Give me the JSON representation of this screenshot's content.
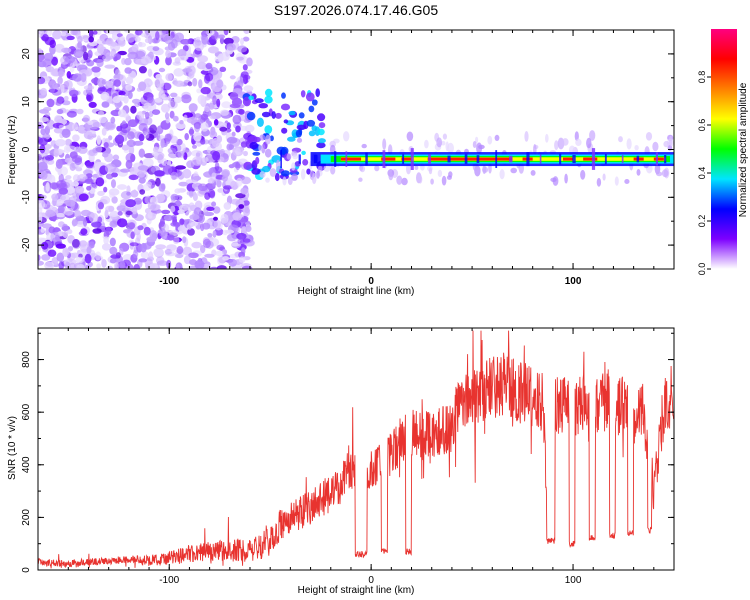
{
  "title": "S197.2026.074.17.46.G05",
  "chart_data": [
    {
      "type": "heatmap",
      "name": "spectrogram",
      "xlabel": "Height of straight line (km)",
      "ylabel": "Frequency (Hz)",
      "xlim": [
        -165,
        150
      ],
      "ylim": [
        -25,
        25
      ],
      "xticks": [
        -100,
        0,
        100
      ],
      "xtick_labels": [
        "-100",
        "0",
        "100"
      ],
      "yticks": [
        20,
        10,
        0,
        -10,
        -20
      ],
      "ytick_labels": [
        "20",
        "10",
        "0",
        "-10",
        "-20"
      ],
      "description_regions": [
        {
          "x_range": [
            -165,
            -60
          ],
          "kind": "broadband noise"
        },
        {
          "x_range": [
            -60,
            150
          ],
          "kind": "narrow carrier line near -2 Hz"
        }
      ],
      "colorbar": {
        "label": "Normalized spectral amplitude",
        "range": [
          0,
          1
        ],
        "ticks": [
          0.0,
          0.2,
          0.4,
          0.6,
          0.8
        ],
        "tick_labels": [
          "0.0",
          "0.2",
          "0.4",
          "0.6",
          "0.8"
        ],
        "colors": [
          "#ffffff",
          "#7d00ff",
          "#0000ff",
          "#00e5ff",
          "#00ff00",
          "#ffff00",
          "#ff7f00",
          "#ff0000",
          "#ff0080"
        ]
      }
    },
    {
      "type": "line",
      "name": "snr",
      "xlabel": "Height of straight line (km)",
      "ylabel": "SNR (10 * v/v)",
      "xlim": [
        -165,
        150
      ],
      "ylim": [
        0,
        920
      ],
      "xticks": [
        -100,
        0,
        100
      ],
      "xtick_labels": [
        "-100",
        "0",
        "100"
      ],
      "yticks": [
        0,
        200,
        400,
        600,
        800
      ],
      "ytick_labels": [
        "0",
        "200",
        "400",
        "600",
        "800"
      ],
      "color": "#e8332f",
      "x": [
        -165,
        -150,
        -140,
        -130,
        -120,
        -110,
        -100,
        -90,
        -80,
        -70,
        -60,
        -55,
        -50,
        -45,
        -40,
        -35,
        -30,
        -25,
        -20,
        -15,
        -10,
        -5,
        0,
        5,
        10,
        15,
        20,
        25,
        30,
        35,
        40,
        42,
        45,
        50,
        55,
        60,
        65,
        70,
        75,
        80,
        85,
        88,
        90,
        95,
        100,
        105,
        110,
        115,
        120,
        125,
        130,
        135,
        140,
        145,
        150
      ],
      "values": [
        30,
        25,
        30,
        35,
        40,
        35,
        45,
        60,
        70,
        75,
        70,
        90,
        110,
        170,
        200,
        220,
        240,
        260,
        300,
        330,
        380,
        380,
        370,
        400,
        430,
        500,
        520,
        510,
        500,
        520,
        540,
        610,
        620,
        640,
        660,
        700,
        710,
        690,
        680,
        660,
        640,
        110,
        620,
        630,
        620,
        630,
        610,
        640,
        620,
        630,
        610,
        600,
        300,
        620,
        680
      ],
      "dropouts": [
        {
          "x_range": [
            -8,
            -2
          ],
          "value": 60
        },
        {
          "x_range": [
            5,
            8
          ],
          "value": 70
        },
        {
          "x_range": [
            17,
            20
          ],
          "value": 70
        },
        {
          "x_range": [
            87,
            91
          ],
          "value": 110
        },
        {
          "x_range": [
            98,
            101
          ],
          "value": 100
        },
        {
          "x_range": [
            108,
            111
          ],
          "value": 120
        },
        {
          "x_range": [
            118,
            121
          ],
          "value": 130
        },
        {
          "x_range": [
            127,
            130
          ],
          "value": 140
        },
        {
          "x_range": [
            137,
            139
          ],
          "value": 150
        }
      ]
    }
  ]
}
